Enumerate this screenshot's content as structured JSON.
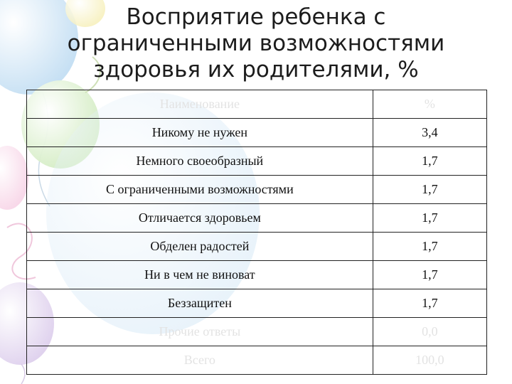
{
  "slide": {
    "title_lines": [
      "Восприятие ребенка с",
      "ограниченными возможностями",
      "здоровья их родителями, %"
    ]
  },
  "table": {
    "header": {
      "name": "Наименование",
      "value": "%"
    },
    "rows": [
      {
        "name": "Никому не нужен",
        "value": "3,4"
      },
      {
        "name": "Немного своеобразный",
        "value": "1,7"
      },
      {
        "name": "С ограниченными возможностями",
        "value": "1,7"
      },
      {
        "name": "Отличается здоровьем",
        "value": "1,7"
      },
      {
        "name": "Обделен радостей",
        "value": "1,7"
      },
      {
        "name": "Ни в чем не виноват",
        "value": "1,7"
      },
      {
        "name": "Беззащитен",
        "value": "1,7"
      }
    ],
    "no_answer": {
      "name": "Прочие ответы",
      "value": "0,0"
    },
    "total": {
      "name": "Всего",
      "value": "100,0"
    }
  },
  "colors": {
    "balloon_blue": "#bfdcf2",
    "balloon_green": "#d3ecc2",
    "balloon_pink": "#f7d3e6",
    "balloon_purple": "#dccdec",
    "balloon_yellow": "#f6efb8"
  }
}
